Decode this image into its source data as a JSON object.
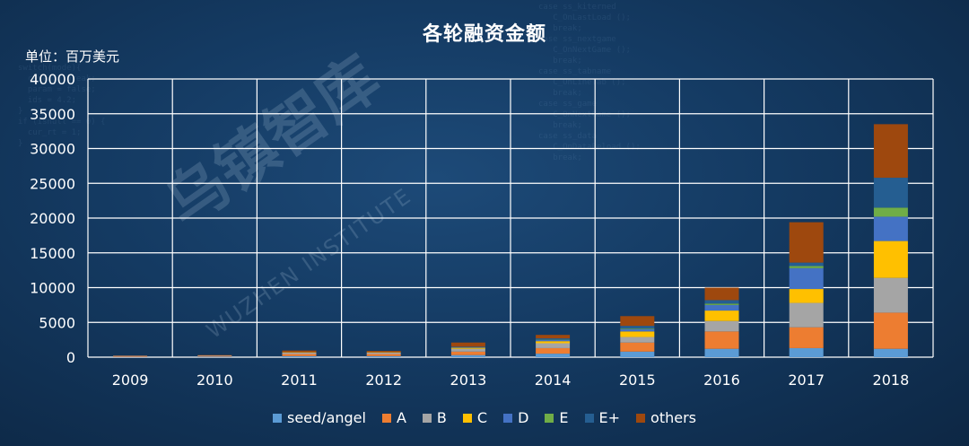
{
  "chart_data": {
    "type": "bar",
    "stacked": true,
    "title": "各轮融资金额",
    "ylabel": "单位：百万美元",
    "xlabel": "",
    "ylim": [
      0,
      40000
    ],
    "yticks": [
      0,
      5000,
      10000,
      15000,
      20000,
      25000,
      30000,
      35000,
      40000
    ],
    "grid": true,
    "legend_position": "bottom",
    "categories": [
      "2009",
      "2010",
      "2011",
      "2012",
      "2013",
      "2014",
      "2015",
      "2016",
      "2017",
      "2018"
    ],
    "series": [
      {
        "name": "seed/angel",
        "color": "#5b9bd5",
        "values": [
          50,
          80,
          150,
          150,
          300,
          500,
          800,
          1200,
          1300,
          1200
        ]
      },
      {
        "name": "A",
        "color": "#ed7d31",
        "values": [
          100,
          120,
          300,
          300,
          500,
          800,
          1300,
          2500,
          3000,
          5200
        ]
      },
      {
        "name": "B",
        "color": "#a5a5a5",
        "values": [
          50,
          60,
          200,
          200,
          400,
          700,
          800,
          1500,
          3500,
          5000
        ]
      },
      {
        "name": "C",
        "color": "#ffc000",
        "values": [
          0,
          0,
          50,
          50,
          150,
          300,
          800,
          1500,
          2000,
          5300
        ]
      },
      {
        "name": "D",
        "color": "#4472c4",
        "values": [
          0,
          0,
          0,
          0,
          50,
          150,
          300,
          800,
          3000,
          3500
        ]
      },
      {
        "name": "E",
        "color": "#70ad47",
        "values": [
          0,
          0,
          0,
          0,
          0,
          50,
          100,
          200,
          300,
          1300
        ]
      },
      {
        "name": "E+",
        "color": "#255e91",
        "values": [
          0,
          0,
          0,
          0,
          100,
          200,
          400,
          500,
          500,
          4300
        ]
      },
      {
        "name": "others",
        "color": "#9e480e",
        "values": [
          50,
          40,
          250,
          200,
          600,
          500,
          1400,
          1800,
          5800,
          7700
        ]
      }
    ]
  },
  "watermark": {
    "brand": "乌镇智库",
    "latin": "WUZHEN INSTITUTE"
  }
}
